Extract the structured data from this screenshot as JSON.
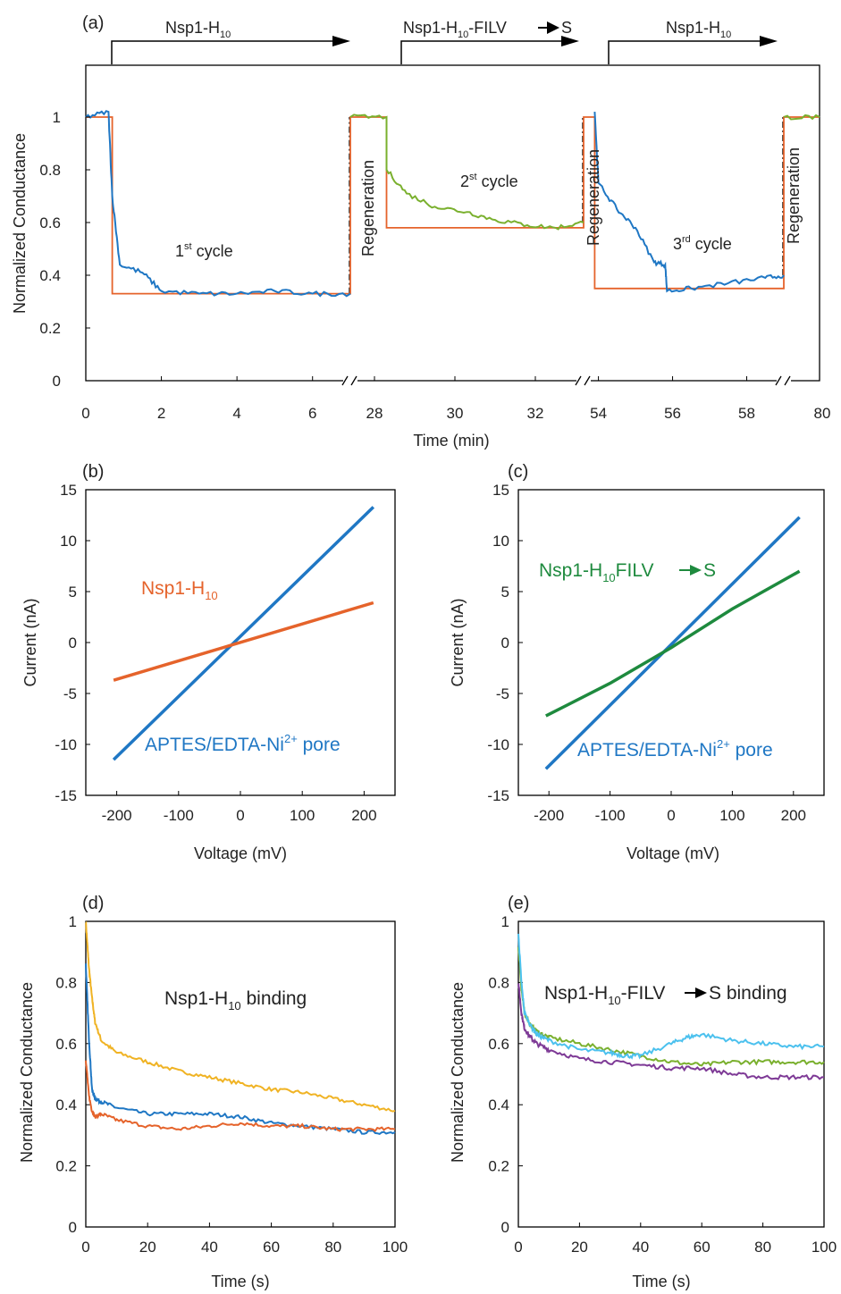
{
  "colors": {
    "orange": "#e5632b",
    "blue": "#1f77c4",
    "green": "#7ab02e",
    "dark_green": "#1e8a3e",
    "yellow": "#f0b324",
    "purple": "#7e3a96",
    "light_blue": "#4cc1ee",
    "axis": "#000000"
  },
  "chart_data": [
    {
      "panel": "(a)",
      "type": "line",
      "ylabel": "Normalized Conductance",
      "xlabel": "Time (min)",
      "ylim": [
        0,
        1.0
      ],
      "yticks": [
        "0",
        "0.2",
        "0.4",
        "0.6",
        "0.8",
        "1"
      ],
      "segments": [
        {
          "xlim": [
            0,
            7
          ],
          "xticks": [
            "0",
            "2",
            "4",
            "6"
          ]
        },
        {
          "xlim": [
            27.4,
            33.2
          ],
          "xticks": [
            "28",
            "30",
            "32"
          ]
        },
        {
          "xlim": [
            53.6,
            59.0
          ],
          "xticks": [
            "54",
            "56",
            "58"
          ]
        }
      ],
      "last_tick": "80",
      "headers": [
        "Nsp1-H",
        "Nsp1-H",
        "Nsp1-H"
      ],
      "header_subs": [
        "10",
        "10",
        "10"
      ],
      "header_suffix": [
        "",
        "-FILV",
        ""
      ],
      "header_tail": [
        "",
        "S",
        ""
      ],
      "cycle_labels": [
        {
          "num": "1",
          "sup": "st",
          "text": " cycle"
        },
        {
          "num": "2",
          "sup": "st",
          "text": " cycle"
        },
        {
          "num": "3",
          "sup": "rd",
          "text": " cycle"
        }
      ],
      "regeneration_label": "Regeneration",
      "series": [
        {
          "color": "orange",
          "values": [
            [
              0,
              1.0
            ],
            [
              0.7,
              1.0
            ],
            [
              0.7,
              0.33
            ],
            [
              7.0,
              0.33
            ],
            [
              27.4,
              1.0
            ],
            [
              28.3,
              1.0
            ],
            [
              28.3,
              0.58
            ],
            [
              33.2,
              0.58
            ],
            [
              53.6,
              1.0
            ],
            [
              53.9,
              1.0
            ],
            [
              53.9,
              0.35
            ],
            [
              59.0,
              0.35
            ],
            [
              79.0,
              1.0
            ],
            [
              80.5,
              1.0
            ]
          ]
        },
        {
          "color": "blue",
          "values": [
            [
              0,
              1.0
            ],
            [
              0.6,
              1.02
            ],
            [
              0.7,
              0.7
            ],
            [
              0.9,
              0.44
            ],
            [
              1.5,
              0.41
            ],
            [
              2.0,
              0.34
            ],
            [
              3.0,
              0.33
            ],
            [
              4.0,
              0.33
            ],
            [
              5.0,
              0.34
            ],
            [
              6.0,
              0.33
            ],
            [
              7.0,
              0.33
            ],
            [
              53.2,
              1.0
            ],
            [
              53.9,
              1.02
            ],
            [
              54.0,
              0.75
            ],
            [
              54.5,
              0.65
            ],
            [
              55.0,
              0.58
            ],
            [
              55.5,
              0.45
            ],
            [
              55.8,
              0.44
            ],
            [
              55.85,
              0.34
            ],
            [
              56.5,
              0.35
            ],
            [
              57.5,
              0.37
            ],
            [
              58.5,
              0.39
            ],
            [
              59.0,
              0.4
            ]
          ]
        },
        {
          "color": "green",
          "values": [
            [
              27.4,
              1.0
            ],
            [
              28.3,
              1.0
            ],
            [
              28.3,
              0.8
            ],
            [
              28.8,
              0.71
            ],
            [
              29.5,
              0.66
            ],
            [
              30.3,
              0.64
            ],
            [
              31.0,
              0.61
            ],
            [
              31.8,
              0.59
            ],
            [
              32.5,
              0.58
            ],
            [
              33.2,
              0.6
            ],
            [
              79.0,
              1.0
            ],
            [
              80.5,
              1.0
            ]
          ]
        }
      ]
    },
    {
      "panel": "(b)",
      "type": "line",
      "xlabel": "Voltage (mV)",
      "ylabel": "Current (nA)",
      "xlim": [
        -250,
        250
      ],
      "ylim": [
        -15,
        15
      ],
      "xticks": [
        "-200",
        "-100",
        "0",
        "100",
        "200"
      ],
      "yticks": [
        "-15",
        "-10",
        "-5",
        "0",
        "5",
        "10",
        "15"
      ],
      "series": [
        {
          "name": "APTES/EDTA-Ni",
          "name_sup": "2+",
          "name_tail": " pore",
          "color": "blue",
          "x": [
            -205,
            215
          ],
          "y": [
            -11.5,
            13.3
          ]
        },
        {
          "name": "Nsp1-H",
          "name_sub": "10",
          "color": "orange",
          "x": [
            -205,
            215
          ],
          "y": [
            -3.7,
            3.9
          ]
        }
      ]
    },
    {
      "panel": "(c)",
      "type": "line",
      "xlabel": "Voltage (mV)",
      "ylabel": "Current (nA)",
      "xlim": [
        -250,
        250
      ],
      "ylim": [
        -15,
        15
      ],
      "xticks": [
        "-200",
        "-100",
        "0",
        "100",
        "200"
      ],
      "yticks": [
        "-15",
        "-10",
        "-5",
        "0",
        "5",
        "10",
        "15"
      ],
      "series": [
        {
          "name": "APTES/EDTA-Ni",
          "name_sup": "2+",
          "name_tail": " pore",
          "color": "blue",
          "x": [
            -205,
            210
          ],
          "y": [
            -12.4,
            12.3
          ]
        },
        {
          "name": "Nsp1-H",
          "name_sub": "10",
          "name_tail": "FILV",
          "name_tail2": "S",
          "color": "dark_green",
          "x": [
            -205,
            -100,
            0,
            100,
            210
          ],
          "y": [
            -7.2,
            -4.0,
            -0.5,
            3.3,
            7.0
          ]
        }
      ]
    },
    {
      "panel": "(d)",
      "type": "line",
      "xlabel": "Time (s)",
      "ylabel": "Normalized Conductance",
      "xlim": [
        0,
        100
      ],
      "ylim": [
        0,
        1.0
      ],
      "xticks": [
        "0",
        "20",
        "40",
        "60",
        "80",
        "100"
      ],
      "yticks": [
        "0",
        "0.2",
        "0.4",
        "0.6",
        "0.8",
        "1"
      ],
      "annotation": "Nsp1-H",
      "annotation_sub": "10",
      "annotation_tail": " binding",
      "series": [
        {
          "color": "yellow",
          "x": [
            0,
            1,
            2,
            3,
            5,
            10,
            20,
            30,
            40,
            50,
            60,
            70,
            80,
            90,
            100
          ],
          "y": [
            1.0,
            0.85,
            0.75,
            0.67,
            0.61,
            0.57,
            0.54,
            0.51,
            0.49,
            0.47,
            0.45,
            0.44,
            0.42,
            0.4,
            0.38
          ]
        },
        {
          "color": "blue",
          "x": [
            0,
            1,
            2,
            3,
            5,
            10,
            20,
            30,
            40,
            50,
            60,
            70,
            80,
            90,
            100
          ],
          "y": [
            0.86,
            0.62,
            0.45,
            0.42,
            0.41,
            0.39,
            0.37,
            0.37,
            0.37,
            0.36,
            0.34,
            0.33,
            0.32,
            0.31,
            0.31
          ]
        },
        {
          "color": "orange",
          "x": [
            0,
            1,
            2,
            3,
            5,
            10,
            20,
            30,
            40,
            50,
            60,
            70,
            80,
            90,
            100
          ],
          "y": [
            0.55,
            0.43,
            0.38,
            0.36,
            0.37,
            0.35,
            0.33,
            0.32,
            0.33,
            0.34,
            0.33,
            0.33,
            0.32,
            0.32,
            0.32
          ]
        }
      ]
    },
    {
      "panel": "(e)",
      "type": "line",
      "xlabel": "Time (s)",
      "ylabel": "Normalized Conductance",
      "xlim": [
        0,
        100
      ],
      "ylim": [
        0,
        1.0
      ],
      "xticks": [
        "0",
        "20",
        "40",
        "60",
        "80",
        "100"
      ],
      "yticks": [
        "0",
        "0.2",
        "0.4",
        "0.6",
        "0.8",
        "1"
      ],
      "annotation": "Nsp1-H",
      "annotation_sub": "10",
      "annotation_tail": "-FILV",
      "annotation_tail2": "S binding",
      "series": [
        {
          "color": "green",
          "x": [
            0,
            1,
            2,
            4,
            6,
            10,
            20,
            30,
            40,
            50,
            60,
            70,
            80,
            90,
            100
          ],
          "y": [
            0.92,
            0.78,
            0.7,
            0.66,
            0.64,
            0.62,
            0.6,
            0.58,
            0.56,
            0.54,
            0.53,
            0.54,
            0.54,
            0.54,
            0.54
          ]
        },
        {
          "color": "purple",
          "x": [
            0,
            1,
            2,
            4,
            6,
            10,
            20,
            30,
            40,
            50,
            60,
            70,
            80,
            90,
            100
          ],
          "y": [
            0.8,
            0.7,
            0.65,
            0.62,
            0.6,
            0.58,
            0.55,
            0.54,
            0.53,
            0.52,
            0.52,
            0.5,
            0.49,
            0.49,
            0.49
          ]
        },
        {
          "color": "light_blue",
          "x": [
            0,
            1,
            2,
            4,
            6,
            10,
            20,
            30,
            35,
            40,
            50,
            55,
            60,
            70,
            80,
            90,
            100
          ],
          "y": [
            0.96,
            0.8,
            0.7,
            0.66,
            0.63,
            0.61,
            0.58,
            0.57,
            0.56,
            0.56,
            0.6,
            0.62,
            0.63,
            0.61,
            0.6,
            0.59,
            0.59
          ]
        }
      ]
    }
  ]
}
